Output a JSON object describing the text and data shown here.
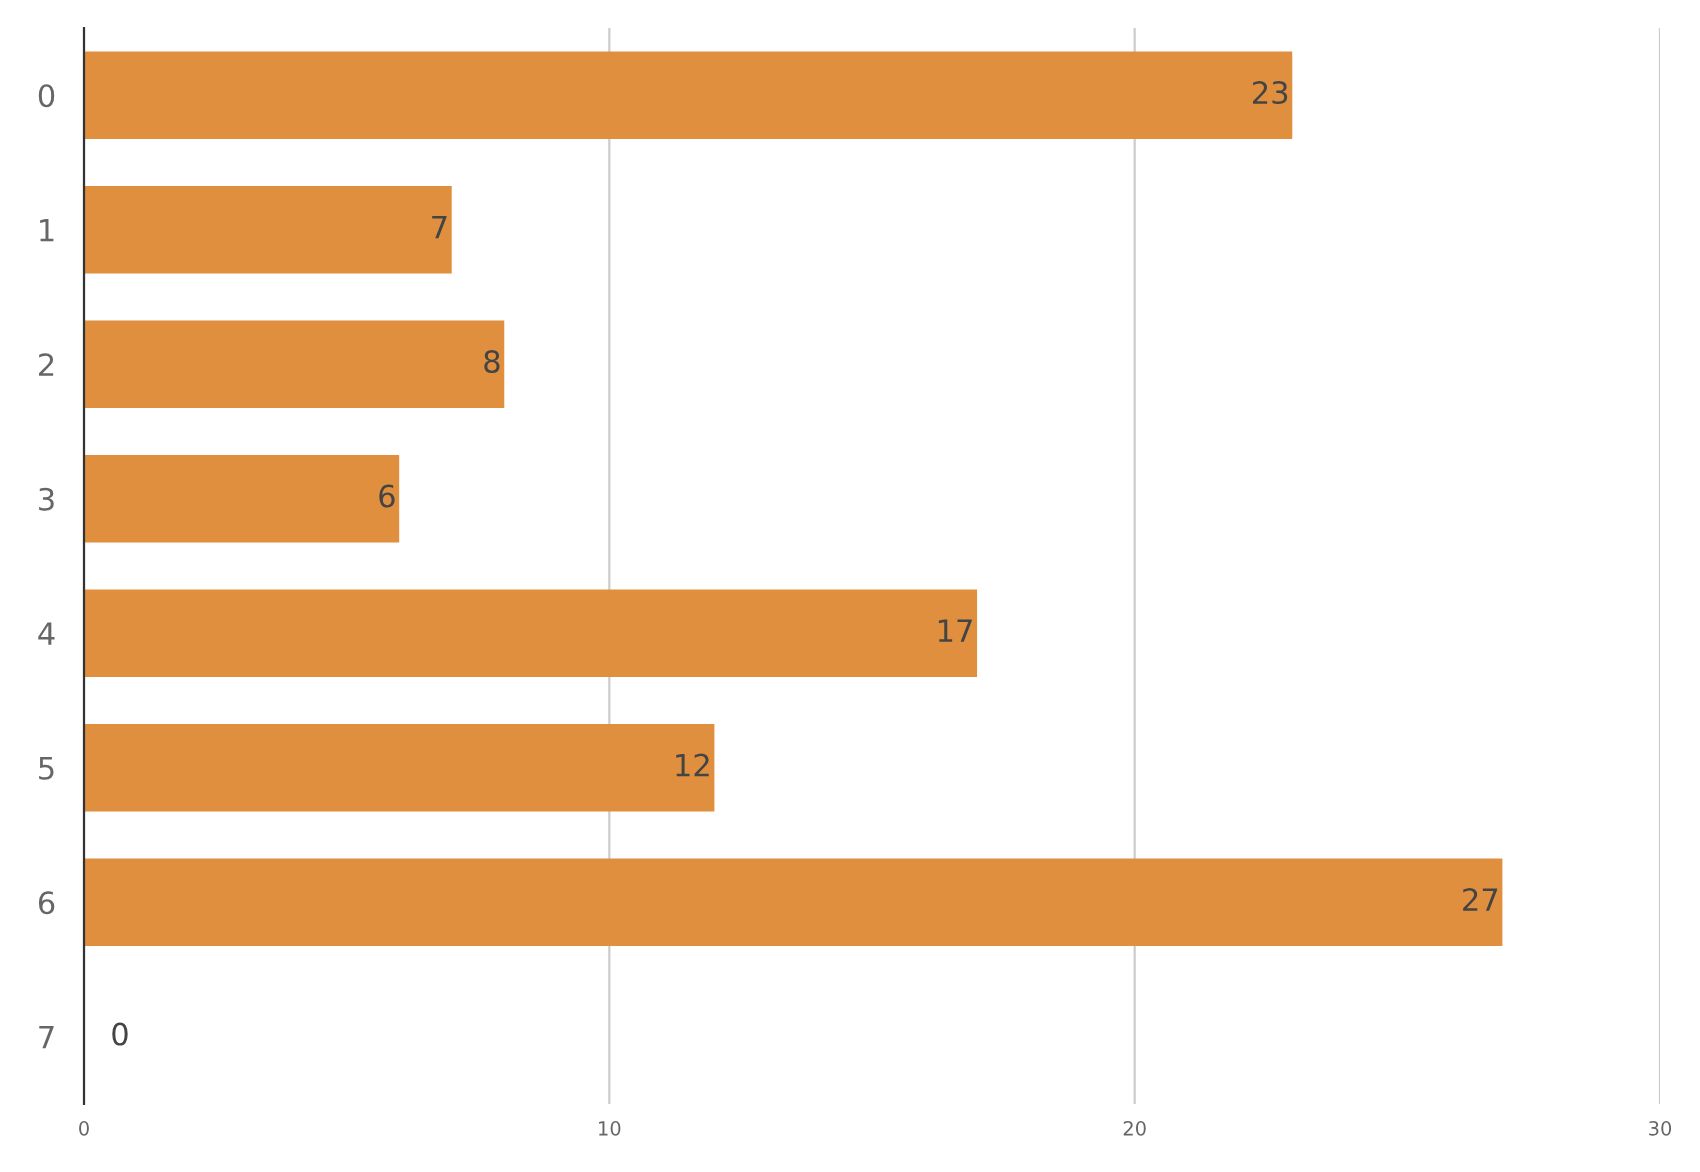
{
  "chart_data": {
    "type": "bar",
    "orientation": "horizontal",
    "categories": [
      "0",
      "1",
      "2",
      "3",
      "4",
      "5",
      "6",
      "7"
    ],
    "values": [
      23,
      7,
      8,
      6,
      17,
      12,
      27,
      0
    ],
    "color": "#e08f3e",
    "xlim": [
      0,
      30
    ],
    "xticks": [
      0,
      10,
      20,
      30
    ],
    "grid": "x",
    "data_labels": true
  }
}
